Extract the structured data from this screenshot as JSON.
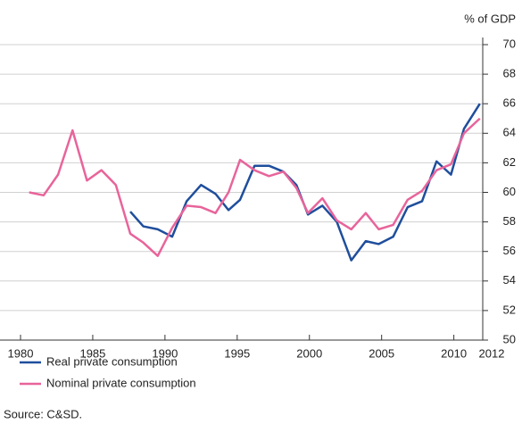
{
  "chart_data": {
    "type": "line",
    "y_unit": "% of GDP",
    "x": [
      1980.6,
      1981.6,
      1982.6,
      1983.6,
      1984.6,
      1985.6,
      1986.6,
      1987.6,
      1988.5,
      1989.5,
      1990.5,
      1991.5,
      1992.5,
      1993.5,
      1994.4,
      1995.2,
      1996.2,
      1997.2,
      1998.2,
      1999.1,
      1999.9,
      2000.9,
      2001.9,
      2002.9,
      2003.9,
      2004.8,
      2005.8,
      2006.8,
      2007.8,
      2008.8,
      2009.8,
      2010.7,
      2011.8
    ],
    "series": [
      {
        "name": "Real private consumption",
        "color": "#1f4e9c",
        "values": [
          null,
          null,
          null,
          null,
          null,
          null,
          null,
          58.7,
          57.7,
          57.5,
          57.0,
          59.4,
          60.5,
          59.9,
          58.8,
          59.5,
          61.8,
          61.8,
          61.4,
          60.5,
          58.5,
          59.1,
          58.0,
          55.4,
          56.7,
          56.5,
          57.0,
          59.0,
          59.4,
          62.1,
          61.2,
          64.3,
          66.0
        ]
      },
      {
        "name": "Nominal private consumption",
        "color": "#e8649b",
        "values": [
          60.0,
          59.8,
          61.2,
          64.2,
          60.8,
          61.5,
          60.5,
          57.2,
          56.6,
          55.7,
          57.6,
          59.1,
          59.0,
          58.6,
          60.0,
          62.2,
          61.5,
          61.1,
          61.4,
          60.3,
          58.6,
          59.6,
          58.1,
          57.5,
          58.6,
          57.5,
          57.8,
          59.5,
          60.1,
          61.5,
          61.9,
          64.0,
          65.0
        ]
      }
    ],
    "xlim": [
      1980,
      2012
    ],
    "xticks": [
      1980,
      1985,
      1990,
      1995,
      2000,
      2005,
      2010,
      2012
    ],
    "ylim": [
      50,
      70
    ],
    "yticks": [
      50,
      52,
      54,
      56,
      58,
      60,
      62,
      64,
      66,
      68,
      70
    ],
    "grid": true,
    "source": "Source: C&SD."
  }
}
